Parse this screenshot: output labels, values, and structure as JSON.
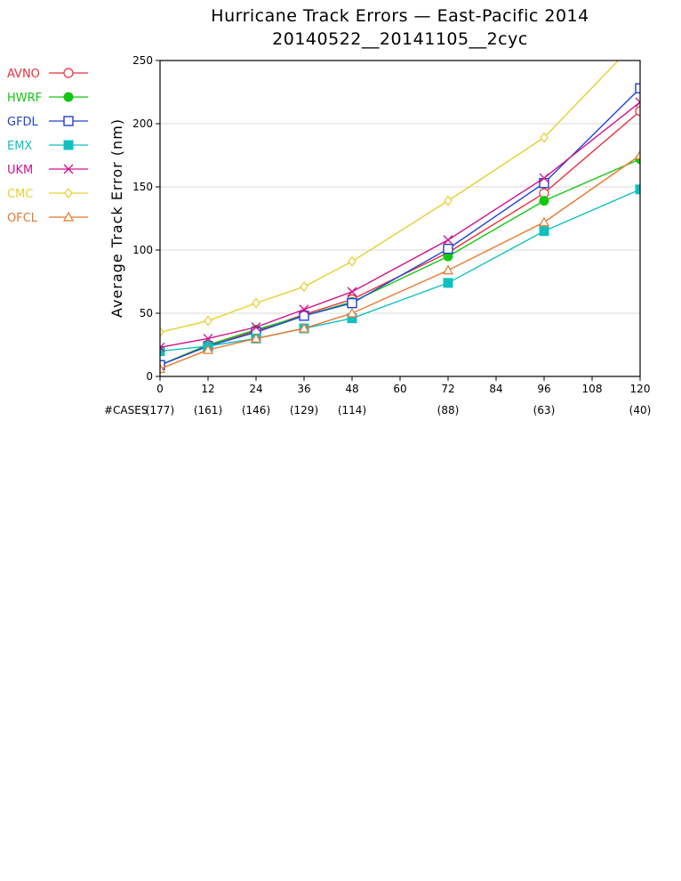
{
  "chart_data": {
    "type": "line",
    "title": "Hurricane Track Errors — East-Pacific 2014",
    "subtitle": "20140522__20141105__2cyc",
    "xlabel": "",
    "ylabel": "Average Track Error (nm)",
    "xlim": [
      0,
      120
    ],
    "ylim": [
      0,
      250
    ],
    "x_ticks": [
      "0",
      "12",
      "24",
      "36",
      "48",
      "60",
      "72",
      "84",
      "96",
      "108",
      "120"
    ],
    "y_ticks": [
      "0",
      "50",
      "100",
      "150",
      "200",
      "250"
    ],
    "grid": true,
    "legend_position": "left",
    "cases_label": "#CASES",
    "cases": [
      {
        "x": 0,
        "label": "(177)"
      },
      {
        "x": 12,
        "label": "(161)"
      },
      {
        "x": 24,
        "label": "(146)"
      },
      {
        "x": 36,
        "label": "(129)"
      },
      {
        "x": 48,
        "label": "(114)"
      },
      {
        "x": 72,
        "label": "(88)"
      },
      {
        "x": 96,
        "label": "(63)"
      },
      {
        "x": 120,
        "label": "(40)"
      }
    ],
    "x": [
      0,
      12,
      24,
      36,
      48,
      72,
      96,
      120
    ],
    "series": [
      {
        "name": "AVNO",
        "color": "#e8303c",
        "marker": "circle-open",
        "values": [
          9,
          25,
          36,
          49,
          61,
          98,
          145,
          210
        ]
      },
      {
        "name": "HWRF",
        "color": "#10c810",
        "marker": "circle-filled",
        "values": [
          9,
          25,
          37,
          48,
          59,
          95,
          139,
          172
        ]
      },
      {
        "name": "GFDL",
        "color": "#2040d8",
        "marker": "square-open",
        "values": [
          9,
          24,
          35,
          48,
          58,
          101,
          153,
          228
        ]
      },
      {
        "name": "EMX",
        "color": "#10c0c0",
        "marker": "square-filled",
        "values": [
          20,
          24,
          30,
          38,
          46,
          74,
          115,
          148
        ]
      },
      {
        "name": "UKM",
        "color": "#d0108c",
        "marker": "x",
        "values": [
          23,
          30,
          39,
          53,
          67,
          108,
          157,
          217
        ]
      },
      {
        "name": "CMC",
        "color": "#e6d030",
        "marker": "diamond-open",
        "values": [
          35,
          44,
          58,
          71,
          91,
          139,
          189,
          268
        ]
      },
      {
        "name": "OFCL",
        "color": "#e8782c",
        "marker": "triangle-open",
        "values": [
          6,
          21,
          30,
          38,
          50,
          84,
          122,
          175
        ]
      }
    ]
  }
}
